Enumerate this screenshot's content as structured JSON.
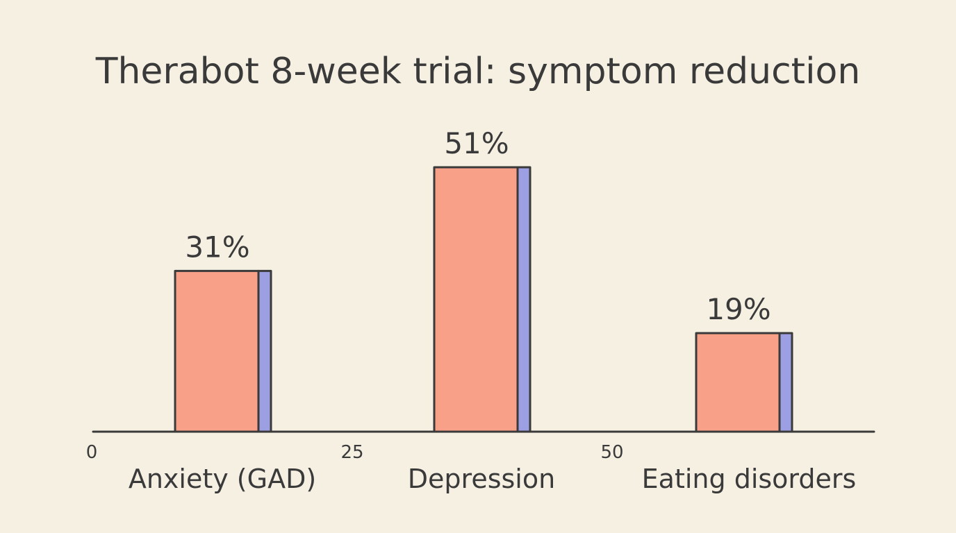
{
  "chart_data": {
    "type": "bar",
    "title": "Therabot 8-week trial: symptom reduction",
    "categories": [
      "Anxiety (GAD)",
      "Depression",
      "Eating disorders"
    ],
    "values": [
      31,
      51,
      19
    ],
    "value_labels": [
      "31%",
      "51%",
      "19%"
    ],
    "x_ticks": [
      "0",
      "25",
      "50"
    ],
    "ylim": [
      0,
      60
    ],
    "grid": false,
    "legend": "none"
  },
  "colors": {
    "background": "#f6f0e3",
    "bar_face": "#f8a088",
    "bar_side": "#9c9fe2",
    "outline": "#3a3a3a",
    "text": "#3a3a3a"
  }
}
